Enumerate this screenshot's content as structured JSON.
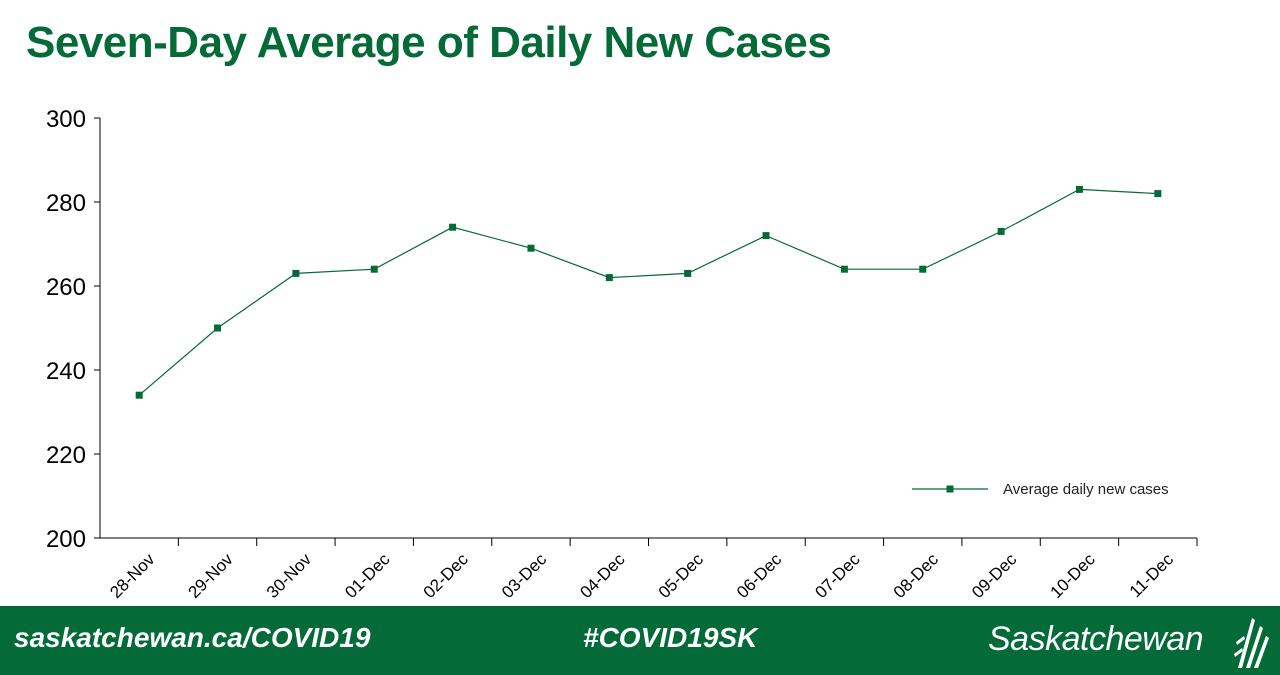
{
  "chart_data": {
    "type": "line",
    "title": "Seven-Day Average of Daily New Cases",
    "xlabel": "",
    "ylabel": "",
    "categories": [
      "28-Nov",
      "29-Nov",
      "30-Nov",
      "01-Dec",
      "02-Dec",
      "03-Dec",
      "04-Dec",
      "05-Dec",
      "06-Dec",
      "07-Dec",
      "08-Dec",
      "09-Dec",
      "10-Dec",
      "11-Dec"
    ],
    "series": [
      {
        "name": "Average daily new cases",
        "color": "#046a38",
        "values": [
          234,
          250,
          263,
          264,
          274,
          269,
          262,
          263,
          272,
          264,
          264,
          273,
          283,
          282
        ]
      }
    ],
    "ylim": [
      200,
      300
    ],
    "yticks": [
      200,
      220,
      240,
      260,
      280,
      300
    ],
    "grid": false,
    "legend": "bottom-right"
  },
  "footer": {
    "url": "saskatchewan.ca/COVID19",
    "hashtag": "#COVID19SK",
    "brand": "Saskatchewan"
  },
  "colors": {
    "brand_green": "#046a38",
    "footer_text": "#ffffff"
  }
}
